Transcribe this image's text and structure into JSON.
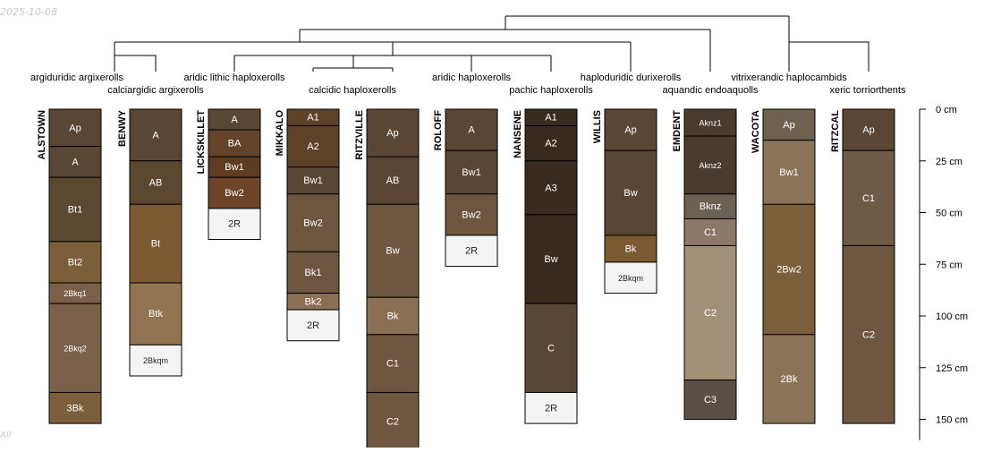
{
  "stamp": "2025-10-08",
  "footnote": "All",
  "depth_axis": {
    "max_cm": 160,
    "ticks": [
      {
        "cm": 0,
        "label": "0 cm"
      },
      {
        "cm": 25,
        "label": "25 cm"
      },
      {
        "cm": 50,
        "label": "50 cm"
      },
      {
        "cm": 75,
        "label": "75 cm"
      },
      {
        "cm": 100,
        "label": "100 cm"
      },
      {
        "cm": 125,
        "label": "125 cm"
      },
      {
        "cm": 150,
        "label": "150 cm"
      }
    ]
  },
  "profiles": [
    {
      "id": "ALSTOWN",
      "taxon": "argiduridic argixerolls",
      "horizons": [
        {
          "name": "Ap",
          "top": 0,
          "bottom": 18,
          "color": "#5a4634"
        },
        {
          "name": "A",
          "top": 18,
          "bottom": 33,
          "color": "#5a4634"
        },
        {
          "name": "Bt1",
          "top": 33,
          "bottom": 64,
          "color": "#5c4731"
        },
        {
          "name": "Bt2",
          "top": 64,
          "bottom": 84,
          "color": "#7b5e3a"
        },
        {
          "name": "2Bkq1",
          "top": 84,
          "bottom": 94,
          "color": "#7a6048"
        },
        {
          "name": "2Bkq2",
          "top": 94,
          "bottom": 137,
          "color": "#7a6048"
        },
        {
          "name": "3Bk",
          "top": 137,
          "bottom": 152,
          "color": "#7b5e3a"
        }
      ]
    },
    {
      "id": "BENWY",
      "taxon": "calciargidic argixerolls",
      "horizons": [
        {
          "name": "A",
          "top": 0,
          "bottom": 25,
          "color": "#5a4634"
        },
        {
          "name": "AB",
          "top": 25,
          "bottom": 46,
          "color": "#5c4731"
        },
        {
          "name": "Bt",
          "top": 46,
          "bottom": 84,
          "color": "#7b5a34"
        },
        {
          "name": "Btk",
          "top": 84,
          "bottom": 114,
          "color": "#937452"
        },
        {
          "name": "2Bkqm",
          "top": 114,
          "bottom": 129,
          "color": "#f4f4f4"
        }
      ]
    },
    {
      "id": "LICKSKILLET",
      "taxon": "aridic lithic haploxerolls",
      "horizons": [
        {
          "name": "A",
          "top": 0,
          "bottom": 10,
          "color": "#5a4634"
        },
        {
          "name": "BA",
          "top": 10,
          "bottom": 23,
          "color": "#63442b"
        },
        {
          "name": "Bw1",
          "top": 23,
          "bottom": 33,
          "color": "#5e3c22"
        },
        {
          "name": "Bw2",
          "top": 33,
          "bottom": 48,
          "color": "#6e4528"
        },
        {
          "name": "2R",
          "top": 48,
          "bottom": 63,
          "color": "#f4f4f4"
        }
      ]
    },
    {
      "id": "MIKKALO",
      "taxon": "calcidic haploxerolls",
      "horizons": [
        {
          "name": "A1",
          "top": 0,
          "bottom": 8,
          "color": "#5d4128"
        },
        {
          "name": "A2",
          "top": 8,
          "bottom": 28,
          "color": "#5d4128"
        },
        {
          "name": "Bw1",
          "top": 28,
          "bottom": 41,
          "color": "#5a4634"
        },
        {
          "name": "Bw2",
          "top": 41,
          "bottom": 69,
          "color": "#6f5641"
        },
        {
          "name": "Bk1",
          "top": 69,
          "bottom": 89,
          "color": "#6f5641"
        },
        {
          "name": "Bk2",
          "top": 89,
          "bottom": 97,
          "color": "#8b6f55"
        },
        {
          "name": "2R",
          "top": 97,
          "bottom": 112,
          "color": "#f4f4f4"
        }
      ]
    },
    {
      "id": "RITZVILLE",
      "taxon": "",
      "horizons": [
        {
          "name": "Ap",
          "top": 0,
          "bottom": 23,
          "color": "#5a4634"
        },
        {
          "name": "AB",
          "top": 23,
          "bottom": 46,
          "color": "#5a4634"
        },
        {
          "name": "Bw",
          "top": 46,
          "bottom": 91,
          "color": "#6f5641"
        },
        {
          "name": "Bk",
          "top": 91,
          "bottom": 109,
          "color": "#8b6f55"
        },
        {
          "name": "C1",
          "top": 109,
          "bottom": 137,
          "color": "#6f5641"
        },
        {
          "name": "C2",
          "top": 137,
          "bottom": 165,
          "color": "#6f5641"
        }
      ]
    },
    {
      "id": "ROLOFF",
      "taxon": "aridic haploxerolls",
      "horizons": [
        {
          "name": "A",
          "top": 0,
          "bottom": 20,
          "color": "#5a4634"
        },
        {
          "name": "Bw1",
          "top": 20,
          "bottom": 41,
          "color": "#5a4634"
        },
        {
          "name": "Bw2",
          "top": 41,
          "bottom": 61,
          "color": "#6f5641"
        },
        {
          "name": "2R",
          "top": 61,
          "bottom": 76,
          "color": "#f4f4f4"
        }
      ]
    },
    {
      "id": "NANSENE",
      "taxon": "pachic haploxerolls",
      "horizons": [
        {
          "name": "A1",
          "top": 0,
          "bottom": 8,
          "color": "#3a2b20"
        },
        {
          "name": "A2",
          "top": 8,
          "bottom": 25,
          "color": "#3a2b20"
        },
        {
          "name": "A3",
          "top": 25,
          "bottom": 51,
          "color": "#3a2b20"
        },
        {
          "name": "Bw",
          "top": 51,
          "bottom": 94,
          "color": "#3a2b20"
        },
        {
          "name": "C",
          "top": 94,
          "bottom": 137,
          "color": "#5a4634"
        },
        {
          "name": "2R",
          "top": 137,
          "bottom": 152,
          "color": "#f4f4f4"
        }
      ]
    },
    {
      "id": "WILLIS",
      "taxon": "haploduridic durixerolls",
      "horizons": [
        {
          "name": "Ap",
          "top": 0,
          "bottom": 20,
          "color": "#5a4634"
        },
        {
          "name": "Bw",
          "top": 20,
          "bottom": 61,
          "color": "#5a4634"
        },
        {
          "name": "Bk",
          "top": 61,
          "bottom": 74,
          "color": "#7b5a34"
        },
        {
          "name": "2Bkqm",
          "top": 74,
          "bottom": 89,
          "color": "#f4f4f4"
        }
      ]
    },
    {
      "id": "EMDENT",
      "taxon": "aquandic endoaquolls",
      "horizons": [
        {
          "name": "Aknz1",
          "top": 0,
          "bottom": 13,
          "color": "#4a3b30"
        },
        {
          "name": "Aknz2",
          "top": 13,
          "bottom": 41,
          "color": "#4a3b30"
        },
        {
          "name": "Bknz",
          "top": 41,
          "bottom": 53,
          "color": "#6d6154"
        },
        {
          "name": "C1",
          "top": 53,
          "bottom": 66,
          "color": "#8b7866"
        },
        {
          "name": "C2",
          "top": 66,
          "bottom": 131,
          "color": "#a39079"
        },
        {
          "name": "C3",
          "top": 131,
          "bottom": 150,
          "color": "#5a4f45"
        }
      ]
    },
    {
      "id": "WACOTA",
      "taxon": "vitrixerandic haplocambids",
      "horizons": [
        {
          "name": "Ap",
          "top": 0,
          "bottom": 15,
          "color": "#6f6150"
        },
        {
          "name": "Bw1",
          "top": 15,
          "bottom": 46,
          "color": "#8b7358"
        },
        {
          "name": "2Bw2",
          "top": 46,
          "bottom": 109,
          "color": "#7b5e3a"
        },
        {
          "name": "2Bk",
          "top": 109,
          "bottom": 152,
          "color": "#8b7358"
        }
      ]
    },
    {
      "id": "RITZCAL",
      "taxon": "xeric torriorthents",
      "horizons": [
        {
          "name": "Ap",
          "top": 0,
          "bottom": 20,
          "color": "#5a4634"
        },
        {
          "name": "C1",
          "top": 20,
          "bottom": 66,
          "color": "#6f5a45"
        },
        {
          "name": "C2",
          "top": 66,
          "bottom": 152,
          "color": "#6f5641"
        }
      ]
    }
  ]
}
